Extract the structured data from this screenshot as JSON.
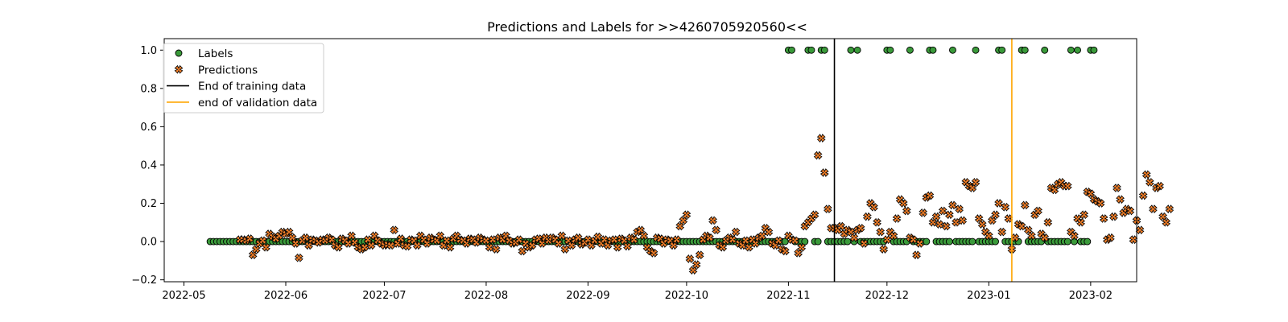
{
  "chart_data": {
    "type": "scatter",
    "title": "Predictions and Labels for >>4260705920560<<",
    "xlabel": "",
    "ylabel": "",
    "x_range": [
      "2022-04-25",
      "2023-02-15"
    ],
    "ylim": [
      -0.21,
      1.06
    ],
    "x_ticks": [
      "2022-05",
      "2022-06",
      "2022-07",
      "2022-08",
      "2022-09",
      "2022-10",
      "2022-11",
      "2022-12",
      "2023-01",
      "2023-02"
    ],
    "y_ticks": [
      -0.2,
      0.0,
      0.2,
      0.4,
      0.6,
      0.8,
      1.0
    ],
    "y_tick_labels": [
      "−0.2",
      "0.0",
      "0.2",
      "0.4",
      "0.6",
      "0.8",
      "1.0"
    ],
    "grid": false,
    "legend_position": "upper-left",
    "colors": {
      "labels": "#3a9a3a",
      "predictions": "#f07f2a",
      "training_line": "#000000",
      "validation_line": "#ffa500"
    },
    "legend": [
      {
        "label": "Labels",
        "kind": "labels"
      },
      {
        "label": "Predictions",
        "kind": "predictions"
      },
      {
        "label": "End of training data",
        "kind": "training_line"
      },
      {
        "label": "end of validation data",
        "kind": "validation_line"
      }
    ],
    "vlines": [
      {
        "name": "End of training data",
        "date": "2022-11-15"
      },
      {
        "name": "end of validation data",
        "date": "2023-01-08"
      }
    ],
    "series": [
      {
        "name": "Labels",
        "marker": "circle",
        "start_date": "2022-05-09",
        "values": [
          0,
          0,
          0,
          0,
          0,
          0,
          0,
          0,
          0,
          0,
          0,
          0,
          0,
          0,
          0,
          0,
          0,
          0,
          0,
          0,
          0,
          0,
          0,
          0,
          0,
          0,
          0,
          0,
          0,
          0,
          0,
          0,
          0,
          0,
          0,
          0,
          0,
          0,
          0,
          0,
          0,
          0,
          0,
          0,
          0,
          0,
          0,
          0,
          0,
          0,
          0,
          0,
          0,
          0,
          0,
          0,
          0,
          0,
          0,
          0,
          0,
          0,
          0,
          0,
          0,
          0,
          0,
          0,
          0,
          0,
          0,
          0,
          0,
          0,
          0,
          0,
          0,
          0,
          0,
          0,
          0,
          0,
          0,
          0,
          0,
          0,
          0,
          0,
          0,
          0,
          0,
          0,
          0,
          0,
          0,
          0,
          0,
          0,
          0,
          0,
          0,
          0,
          0,
          0,
          0,
          0,
          0,
          0,
          0,
          0,
          0,
          0,
          0,
          0,
          0,
          0,
          0,
          0,
          0,
          0,
          0,
          0,
          0,
          0,
          0,
          0,
          0,
          0,
          0,
          0,
          0,
          0,
          0,
          0,
          0,
          0,
          0,
          0,
          0,
          0,
          0,
          0,
          0,
          0,
          0,
          0,
          0,
          0,
          0,
          0,
          0,
          0,
          0,
          0,
          0,
          0,
          0,
          0,
          0,
          0,
          0,
          0,
          0,
          0,
          0,
          0,
          0,
          0,
          0,
          0,
          0,
          0,
          0,
          0,
          0,
          0,
          1,
          1,
          0,
          0,
          0,
          0,
          1,
          1,
          0,
          0,
          1,
          1,
          0,
          0,
          0,
          0,
          0,
          0,
          0,
          1,
          0,
          1,
          0,
          0,
          0,
          0,
          0,
          0,
          0,
          0,
          1,
          1,
          0,
          0,
          0,
          0,
          0,
          1,
          0,
          0,
          0,
          0,
          0,
          1,
          1,
          0,
          0,
          0,
          0,
          0,
          1,
          0,
          0,
          0,
          0,
          0,
          0,
          1,
          0,
          0,
          0,
          0,
          0,
          0,
          1,
          1,
          0,
          0,
          0,
          0,
          0,
          1,
          1,
          0,
          0,
          0,
          0,
          0,
          1,
          0,
          0,
          0,
          0,
          0,
          0,
          0,
          1,
          0,
          1,
          0,
          0,
          0,
          1,
          1
        ]
      },
      {
        "name": "Predictions",
        "marker": "x",
        "start_date": "2022-05-18",
        "values": [
          0.01,
          0.01,
          0.005,
          0.015,
          -0.07,
          -0.04,
          -0.01,
          0.005,
          -0.03,
          0.04,
          0.025,
          0.015,
          0.03,
          0.05,
          0.04,
          0.05,
          0.02,
          -0.01,
          -0.085,
          0.005,
          0.02,
          -0.02,
          0.01,
          0.005,
          -0.005,
          0.01,
          0.005,
          0.02,
          0.01,
          -0.02,
          -0.03,
          0.015,
          0.005,
          -0.01,
          0.03,
          -0.005,
          -0.03,
          -0.04,
          -0.03,
          0.01,
          -0.02,
          0.03,
          0.005,
          -0.01,
          -0.02,
          -0.015,
          -0.02,
          0.06,
          -0.01,
          0.015,
          -0.02,
          -0.025,
          0.01,
          0.005,
          -0.02,
          0.03,
          0.01,
          -0.01,
          0.02,
          0.01,
          0.005,
          0.03,
          -0.02,
          0.005,
          -0.03,
          0.015,
          0.03,
          0.01,
          0.005,
          -0.01,
          0.015,
          0.01,
          -0.005,
          0.02,
          0.01,
          0.005,
          -0.03,
          0.01,
          -0.04,
          0.02,
          0.01,
          0.03,
          0.005,
          -0.01,
          -0.005,
          0.01,
          -0.05,
          -0.01,
          -0.03,
          -0.02,
          0.01,
          0.015,
          -0.01,
          0.02,
          0.005,
          0.02,
          0.01,
          -0.01,
          0.03,
          -0.04,
          0.005,
          -0.02,
          0.01,
          0.02,
          -0.015,
          -0.005,
          0.01,
          -0.02,
          0.005,
          0.025,
          -0.01,
          0.01,
          -0.02,
          0.005,
          0.01,
          -0.03,
          0.015,
          0.005,
          -0.025,
          0.02,
          0.01,
          0.05,
          0.06,
          0.03,
          -0.03,
          -0.05,
          -0.06,
          0.02,
          0.015,
          -0.01,
          0.01,
          0.005,
          -0.02,
          0.01,
          0.08,
          0.11,
          0.14,
          -0.09,
          -0.15,
          -0.12,
          -0.07,
          0.01,
          0.03,
          0.02,
          0.11,
          0.06,
          -0.02,
          -0.03,
          0.005,
          0.02,
          0.01,
          0.05,
          -0.01,
          -0.02,
          0.005,
          -0.03,
          0.01,
          -0.01,
          0.02,
          0.03,
          0.07,
          0.05,
          -0.01,
          -0.02,
          0.005,
          -0.04,
          -0.05,
          0.03,
          0.01,
          0.005,
          -0.06,
          -0.03,
          0.08,
          0.1,
          0.12,
          0.14,
          0.45,
          0.54,
          0.36,
          0.17,
          0.07,
          0.07,
          0.06,
          0.08,
          0.04,
          0.06,
          0.05,
          0.02,
          0.06,
          0.07,
          -0.01,
          0.13,
          0.2,
          0.18,
          0.1,
          0.05,
          -0.04,
          0.01,
          0.05,
          0.03,
          0.12,
          0.22,
          0.2,
          0.16,
          0.02,
          0.01,
          -0.07,
          -0.01,
          0.15,
          0.23,
          0.24,
          0.1,
          0.13,
          0.09,
          0.16,
          0.08,
          0.14,
          0.19,
          0.1,
          0.17,
          0.11,
          0.31,
          0.29,
          0.28,
          0.31,
          0.12,
          0.09,
          0.05,
          0.03,
          0.11,
          0.14,
          0.2,
          0.05,
          0.18,
          0.12,
          -0.04,
          0.02,
          0.09,
          0.08,
          0.19,
          0.06,
          0.03,
          0.14,
          0.16,
          0.04,
          0.02,
          0.1,
          0.28,
          0.27,
          0.3,
          0.31,
          0.29,
          0.29,
          0.05,
          0.03,
          0.12,
          0.1,
          0.14,
          0.26,
          0.25,
          0.22,
          0.21,
          0.2,
          0.12,
          0.01,
          0.02,
          0.13,
          0.28,
          0.22,
          0.15,
          0.17,
          0.16,
          0.01,
          0.11,
          0.06,
          0.24,
          0.35,
          0.31,
          0.17,
          0.28,
          0.29,
          0.13,
          0.1,
          0.17
        ]
      }
    ]
  }
}
